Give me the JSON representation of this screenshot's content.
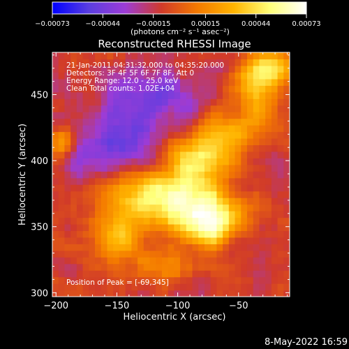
{
  "chart_data": {
    "type": "heatmap",
    "title": "Reconstructed RHESSI Image",
    "xlabel": "Heliocentric X (arcsec)",
    "ylabel": "Heliocentric Y (arcsec)",
    "xlim": [
      -203,
      -8
    ],
    "ylim": [
      297,
      482
    ],
    "xticks": [
      -200,
      -150,
      -100,
      -50
    ],
    "xtick_labels": [
      "−200",
      "−150",
      "−100",
      "−50"
    ],
    "yticks": [
      300,
      350,
      400,
      450
    ],
    "ytick_labels": [
      "300",
      "350",
      "400",
      "450"
    ],
    "colorbar": {
      "ticks": [
        -0.00073,
        -0.00044,
        -0.00015,
        0.00015,
        0.00044,
        0.00073
      ],
      "tick_labels": [
        "−0.00073",
        "−0.00044",
        "−0.00015",
        "0.00015",
        "0.00044",
        "0.00073"
      ],
      "range": [
        -0.00073,
        0.00073
      ],
      "unit_text": "(photons cm⁻² s⁻¹ asec⁻²)"
    },
    "annotations": [
      "21-Jan-2011 04:31:32.000 to 04:35:20.000",
      "Detectors: 3F 4F 5F 6F 7F 8F, Att 0",
      "Energy Range: 12.0 - 25.0 keV",
      "Clean    Total counts: 1.02E+04"
    ],
    "peak_text": "Position of Peak = [-69,345]",
    "peak": {
      "x": -69,
      "y": 345
    },
    "colormap": [
      "#0000ff",
      "#5a3ee0",
      "#9c3cd6",
      "#d03a2a",
      "#f47a00",
      "#ffb400",
      "#ffff7a",
      "#ffffff"
    ],
    "emission_components": [
      {
        "x": -80,
        "y": 358,
        "sx": 22,
        "sy": 12,
        "amp": 0.0007
      },
      {
        "x": -72,
        "y": 345,
        "sx": 10,
        "sy": 8,
        "amp": 0.0003
      },
      {
        "x": -120,
        "y": 375,
        "sx": 28,
        "sy": 14,
        "amp": 0.00055
      },
      {
        "x": -85,
        "y": 398,
        "sx": 18,
        "sy": 14,
        "amp": 0.0006
      },
      {
        "x": -60,
        "y": 420,
        "sx": 14,
        "sy": 12,
        "amp": 0.0004
      },
      {
        "x": -150,
        "y": 345,
        "sx": 14,
        "sy": 14,
        "amp": 0.00045
      },
      {
        "x": -35,
        "y": 455,
        "sx": 12,
        "sy": 20,
        "amp": 0.0005
      },
      {
        "x": -20,
        "y": 470,
        "sx": 10,
        "sy": 10,
        "amp": 0.0004
      },
      {
        "x": -195,
        "y": 415,
        "sx": 8,
        "sy": 8,
        "amp": 0.0004
      },
      {
        "x": -110,
        "y": 320,
        "sx": 18,
        "sy": 8,
        "amp": 0.00025
      },
      {
        "x": -150,
        "y": 410,
        "sx": 30,
        "sy": 18,
        "amp": -0.00035
      },
      {
        "x": -120,
        "y": 450,
        "sx": 30,
        "sy": 15,
        "amp": -0.0003
      }
    ],
    "noise_amplitude": 0.00018,
    "baseline": -0.0001
  },
  "footer": {
    "date": "8-May-2022 16:59"
  }
}
